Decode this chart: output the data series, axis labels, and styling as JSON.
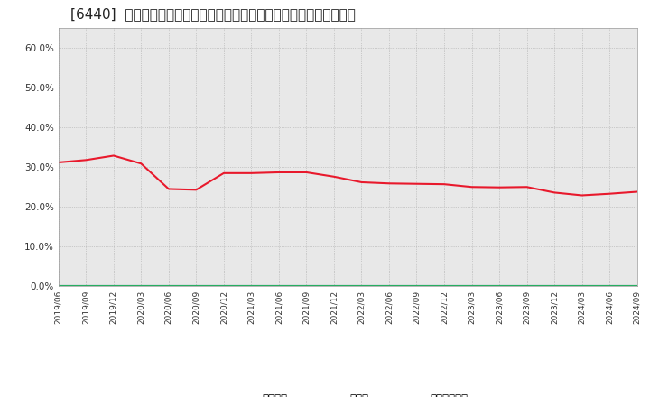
{
  "title": "[6440]  自己資本、のれん、繰延税金資産の総資産に対する比率の推移",
  "x_labels": [
    "2019/06",
    "2019/09",
    "2019/12",
    "2020/03",
    "2020/06",
    "2020/09",
    "2020/12",
    "2021/03",
    "2021/06",
    "2021/09",
    "2021/12",
    "2022/03",
    "2022/06",
    "2022/09",
    "2022/12",
    "2023/03",
    "2023/06",
    "2023/09",
    "2023/12",
    "2024/03",
    "2024/06",
    "2024/09"
  ],
  "jikoshihon": [
    0.311,
    0.317,
    0.328,
    0.308,
    0.244,
    0.242,
    0.284,
    0.284,
    0.286,
    0.286,
    0.275,
    0.261,
    0.258,
    0.257,
    0.256,
    0.249,
    0.248,
    0.249,
    0.235,
    0.228,
    0.232,
    0.237
  ],
  "noren": [
    0.0,
    0.0,
    0.0,
    0.0,
    0.0,
    0.0,
    0.0,
    0.0,
    0.0,
    0.0,
    0.0,
    0.0,
    0.0,
    0.0,
    0.0,
    0.0,
    0.0,
    0.0,
    0.0,
    0.0,
    0.0,
    0.0
  ],
  "kurinobe": [
    0.0,
    0.0,
    0.0,
    0.0,
    0.0,
    0.0,
    0.0,
    0.0,
    0.0,
    0.0,
    0.0,
    0.0,
    0.0,
    0.0,
    0.0,
    0.0,
    0.0,
    0.0,
    0.0,
    0.0,
    0.0,
    0.0
  ],
  "jikoshihon_color": "#e8192c",
  "noren_color": "#1e3799",
  "kurinobe_color": "#27ae60",
  "fig_bg_color": "#ffffff",
  "plot_bg_color": "#e8e8e8",
  "ylim": [
    0.0,
    0.65
  ],
  "yticks": [
    0.0,
    0.1,
    0.2,
    0.3,
    0.4,
    0.5,
    0.6
  ],
  "legend_labels": [
    "自己資本",
    "のれん",
    "繰延税金資産"
  ],
  "title_fontsize": 11,
  "line_width": 1.5
}
